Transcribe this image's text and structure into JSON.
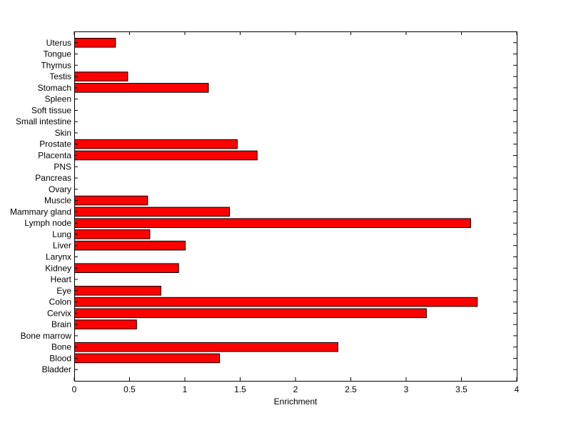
{
  "chart_data": {
    "type": "bar",
    "orientation": "horizontal",
    "title": "",
    "xlabel": "Enrichment",
    "ylabel": "",
    "xlim": [
      0,
      4
    ],
    "xticks": [
      "0",
      "0.5",
      "1",
      "1.5",
      "2",
      "2.5",
      "3",
      "3.5",
      "4"
    ],
    "grid": false,
    "bar_color": "#ff0000",
    "bar_edge_color": "#000000",
    "categories": [
      "Bladder",
      "Blood",
      "Bone",
      "Bone marrow",
      "Brain",
      "Cervix",
      "Colon",
      "Eye",
      "Heart",
      "Kidney",
      "Larynx",
      "Liver",
      "Lung",
      "Lymph node",
      "Mammary gland",
      "Muscle",
      "Ovary",
      "Pancreas",
      "PNS",
      "Placenta",
      "Prostate",
      "Skin",
      "Small intestine",
      "Soft tissue",
      "Spleen",
      "Stomach",
      "Testis",
      "Thymus",
      "Tongue",
      "Uterus"
    ],
    "values": [
      0,
      1.31,
      2.38,
      0,
      0.56,
      3.18,
      3.64,
      0.78,
      0,
      0.94,
      0,
      1.0,
      0.68,
      3.58,
      1.4,
      0.66,
      0,
      0,
      0,
      1.65,
      1.47,
      0,
      0,
      0,
      0,
      1.21,
      0.48,
      0,
      0,
      0.37
    ]
  }
}
